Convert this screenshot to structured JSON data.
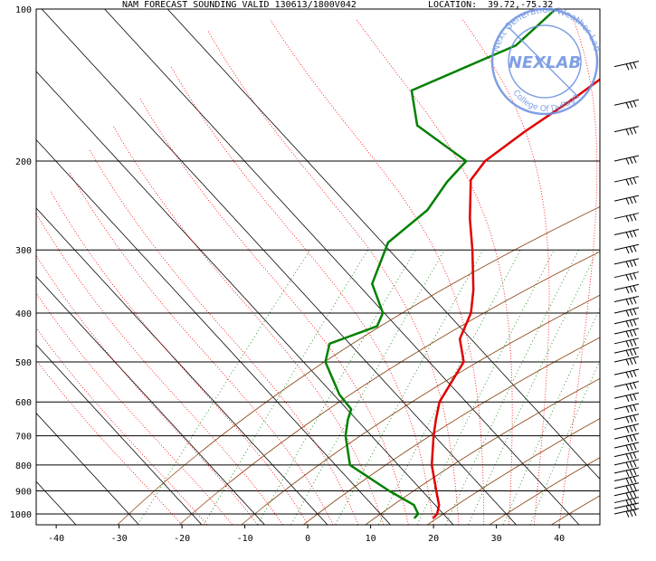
{
  "header": {
    "title": "NAM FORECAST SOUNDING VALID 130613/1800V042",
    "location_label": "LOCATION:",
    "location_value": "39.72,-75.32"
  },
  "chart_data": {
    "type": "line",
    "subtype": "skew-T log-P sounding",
    "xlabel": "",
    "ylabel": "",
    "y_log_scale": true,
    "y_inverted": true,
    "xlim": [
      -45,
      45
    ],
    "ylim": [
      1050,
      100
    ],
    "x_ticks": [
      "-40",
      "-30",
      "-20",
      "-10",
      "0",
      "10",
      "20",
      "30",
      "40"
    ],
    "y_ticks": [
      "100",
      "200",
      "300",
      "400",
      "500",
      "600",
      "700",
      "800",
      "900",
      "1000"
    ],
    "isobars_hpa": [
      100,
      200,
      300,
      400,
      500,
      600,
      700,
      800,
      900,
      1000
    ],
    "colors": {
      "temperature": "#e00000",
      "dewpoint": "#008000",
      "isotherm": "#000000",
      "isobar": "#000000",
      "dry_adiabat": "#8b4513",
      "moist_adiabat": "#ff0000",
      "mixing_ratio": "#008000",
      "stamp": "#6a8fe0"
    },
    "series": [
      {
        "key": "temperature",
        "points": [
          [
            -9,
            100
          ],
          [
            -16,
            119
          ],
          [
            -18,
            132
          ],
          [
            -20,
            150
          ],
          [
            -23,
            175
          ],
          [
            -25,
            200
          ],
          [
            -24.5,
            218
          ],
          [
            -19,
            260
          ],
          [
            -14,
            300
          ],
          [
            -8,
            360
          ],
          [
            -5,
            400
          ],
          [
            -3,
            450
          ],
          [
            1,
            500
          ],
          [
            3,
            600
          ],
          [
            5,
            650
          ],
          [
            7,
            700
          ],
          [
            11,
            800
          ],
          [
            15.5,
            900
          ],
          [
            18,
            960
          ],
          [
            19,
            1000
          ],
          [
            19,
            1020
          ]
        ]
      },
      {
        "key": "dewpoint",
        "points": [
          [
            -36,
            100
          ],
          [
            -37,
            118
          ],
          [
            -47,
            145
          ],
          [
            -41,
            170
          ],
          [
            -28,
            200
          ],
          [
            -28,
            220
          ],
          [
            -27,
            250
          ],
          [
            -28.5,
            290
          ],
          [
            -25,
            350
          ],
          [
            -19,
            400
          ],
          [
            -18,
            425
          ],
          [
            -23,
            460
          ],
          [
            -21,
            500
          ],
          [
            -14,
            580
          ],
          [
            -10,
            620
          ],
          [
            -9,
            650
          ],
          [
            -7,
            700
          ],
          [
            -2,
            800
          ],
          [
            8,
            900
          ],
          [
            14,
            960
          ],
          [
            16,
            1000
          ],
          [
            16,
            1020
          ]
        ]
      }
    ],
    "wind_barbs": {
      "unit": "knots",
      "levels_hpa": [
        130,
        155,
        175,
        200,
        220,
        240,
        260,
        280,
        300,
        320,
        340,
        360,
        380,
        400,
        420,
        440,
        460,
        480,
        500,
        530,
        560,
        590,
        620,
        650,
        680,
        710,
        740,
        770,
        800,
        830,
        860,
        890,
        920,
        950,
        975,
        1000
      ]
    },
    "stamp": {
      "ring_text_top": "Next Generation Weather Lab",
      "ring_text_bottom": "College Of DuPage",
      "center_text": "NEXLAB"
    }
  }
}
